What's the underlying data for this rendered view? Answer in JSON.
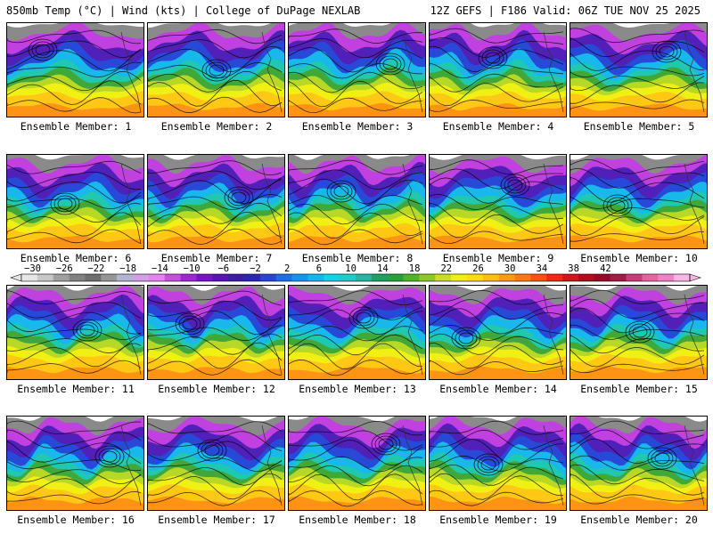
{
  "header": {
    "left": "850mb Temp (°C) | Wind (kts) | College of DuPage NEXLAB",
    "right": "12Z GEFS | F186 Valid: 06Z TUE NOV 25 2025"
  },
  "members": [
    {
      "label": "Ensemble Member: 1"
    },
    {
      "label": "Ensemble Member: 2"
    },
    {
      "label": "Ensemble Member: 3"
    },
    {
      "label": "Ensemble Member: 4"
    },
    {
      "label": "Ensemble Member: 5"
    },
    {
      "label": "Ensemble Member: 6"
    },
    {
      "label": "Ensemble Member: 7"
    },
    {
      "label": "Ensemble Member: 8"
    },
    {
      "label": "Ensemble Member: 9"
    },
    {
      "label": "Ensemble Member: 10"
    },
    {
      "label": "Ensemble Member: 11"
    },
    {
      "label": "Ensemble Member: 12"
    },
    {
      "label": "Ensemble Member: 13"
    },
    {
      "label": "Ensemble Member: 14"
    },
    {
      "label": "Ensemble Member: 15"
    },
    {
      "label": "Ensemble Member: 16"
    },
    {
      "label": "Ensemble Member: 17"
    },
    {
      "label": "Ensemble Member: 18"
    },
    {
      "label": "Ensemble Member: 19"
    },
    {
      "label": "Ensemble Member: 20"
    }
  ],
  "colorbar": {
    "labels": [
      "−30",
      "−26",
      "−22",
      "−18",
      "−14",
      "−10",
      "−6",
      "−2",
      "2",
      "6",
      "10",
      "14",
      "18",
      "22",
      "26",
      "30",
      "34",
      "38",
      "42"
    ],
    "colors": [
      "#e6e6e6",
      "#c8c8c8",
      "#a0a0a0",
      "#828282",
      "#6e6e6e",
      "#969696",
      "#b4b4d2",
      "#d2a0e6",
      "#e682f0",
      "#c850dc",
      "#a028d2",
      "#7814c8",
      "#5a14b4",
      "#3c1ea0",
      "#2828b4",
      "#2846d2",
      "#1e6ee6",
      "#1496f0",
      "#14b4f0",
      "#14d2e6",
      "#1ecdc8",
      "#28b4a0",
      "#1ea064",
      "#28a03c",
      "#50b428",
      "#8cc828",
      "#c8dc28",
      "#f0f014",
      "#ffdc14",
      "#ffbe14",
      "#ff9b14",
      "#ff7814",
      "#ff5014",
      "#f02814",
      "#d2141e",
      "#b40a1e",
      "#960a28",
      "#a01e46",
      "#c83c78",
      "#e664a0",
      "#f082c8",
      "#fab4e6"
    ]
  }
}
